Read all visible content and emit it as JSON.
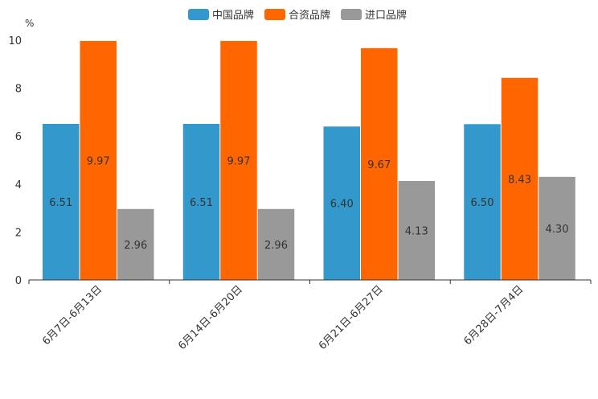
{
  "chart_data": {
    "type": "bar",
    "title": "",
    "xlabel": "",
    "ylabel": "%",
    "ylim": [
      0,
      10
    ],
    "yticks": [
      "0",
      "2",
      "4",
      "6",
      "8",
      "10"
    ],
    "categories": [
      "6月7日-6月13日",
      "6月14日-6月20日",
      "6月21日-6月27日",
      "6月28日-7月4日"
    ],
    "series": [
      {
        "name": "中国品牌",
        "color": "#3399cc",
        "values": [
          6.51,
          6.51,
          6.4,
          6.5
        ],
        "labels": [
          "6.51",
          "6.51",
          "6.40",
          "6.50"
        ]
      },
      {
        "name": "合资品牌",
        "color": "#ff6600",
        "values": [
          9.97,
          9.97,
          9.67,
          8.43
        ],
        "labels": [
          "9.97",
          "9.97",
          "9.67",
          "8.43"
        ]
      },
      {
        "name": "进口品牌",
        "color": "#999999",
        "values": [
          2.96,
          2.96,
          4.13,
          4.3
        ],
        "labels": [
          "2.96",
          "2.96",
          "4.13",
          "4.30"
        ]
      }
    ],
    "legend_position": "top-center",
    "grid": false
  }
}
